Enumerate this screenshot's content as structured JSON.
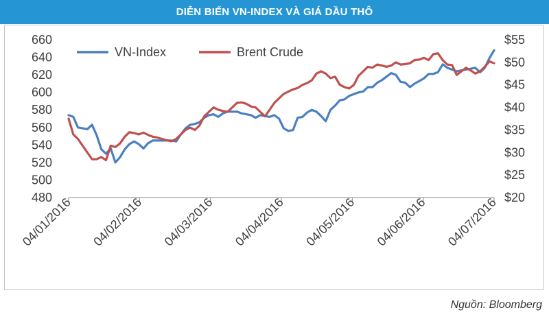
{
  "header": {
    "title": "DIỄN BIẾN VN-INDEX VÀ GIÁ DẦU THÔ"
  },
  "source": "Nguồn: Bloomberg",
  "colors": {
    "header_bg": "#2596d3",
    "vn_index": "#4a7fc1",
    "brent": "#c0504d"
  },
  "chart_data": {
    "type": "line",
    "title": "DIỄN BIẾN VN-INDEX VÀ GIÁ DẦU THÔ",
    "x_labels": [
      "04/01/2016",
      "04/02/2016",
      "04/03/2016",
      "04/04/2016",
      "04/05/2016",
      "04/06/2016",
      "04/07/2016"
    ],
    "y_left": {
      "range": [
        480,
        660
      ],
      "ticks": [
        "480",
        "500",
        "520",
        "540",
        "560",
        "580",
        "600",
        "620",
        "640",
        "660"
      ]
    },
    "y_right": {
      "range": [
        20,
        55
      ],
      "ticks": [
        "$20",
        "$25",
        "$30",
        "$35",
        "$40",
        "$45",
        "$50",
        "$55"
      ]
    },
    "legend": [
      "VN-Index",
      "Brent Crude"
    ],
    "series": [
      {
        "name": "VN-Index",
        "axis": "left",
        "x": [
          0,
          2,
          4,
          6,
          8,
          10,
          12,
          14,
          16,
          18,
          20,
          22,
          24,
          26,
          28,
          30,
          32,
          34,
          36,
          38,
          40,
          42,
          44,
          46,
          48,
          50,
          52,
          54,
          56,
          58,
          60,
          62,
          64,
          66,
          68,
          70,
          72,
          74,
          76,
          78,
          80,
          82,
          84,
          86,
          88,
          90,
          92,
          94,
          96,
          98,
          100,
          102,
          104,
          106,
          108,
          110,
          112,
          114,
          116,
          118,
          120,
          122,
          124,
          126,
          128,
          130,
          132,
          134,
          136,
          138,
          140,
          142,
          144,
          146,
          148,
          150,
          152,
          154,
          156,
          158,
          160,
          162,
          164,
          166,
          168,
          170,
          172,
          174,
          176,
          178,
          180,
          182
        ],
        "values": [
          574,
          572,
          560,
          559,
          558,
          563,
          551,
          535,
          530,
          536,
          520,
          526,
          535,
          541,
          544,
          541,
          536,
          542,
          545,
          545,
          545,
          545,
          545,
          544,
          552,
          559,
          563,
          564,
          566,
          571,
          574,
          575,
          572,
          576,
          578,
          578,
          578,
          576,
          575,
          574,
          571,
          574,
          573,
          572,
          574,
          570,
          559,
          556,
          557,
          571,
          572,
          577,
          580,
          578,
          573,
          567,
          580,
          585,
          591,
          592,
          596,
          598,
          600,
          601,
          606,
          606,
          611,
          614,
          618,
          622,
          620,
          612,
          611,
          606,
          610,
          613,
          616,
          621,
          621,
          623,
          632,
          628,
          626,
          624,
          625,
          626,
          627,
          628,
          623,
          628,
          639,
          648
        ]
      },
      {
        "name": "Brent Crude",
        "axis": "right",
        "x": [
          0,
          2,
          4,
          6,
          8,
          10,
          12,
          14,
          16,
          18,
          20,
          22,
          24,
          26,
          28,
          30,
          32,
          34,
          36,
          38,
          40,
          42,
          44,
          46,
          48,
          50,
          52,
          54,
          56,
          58,
          60,
          62,
          64,
          66,
          68,
          70,
          72,
          74,
          76,
          78,
          80,
          82,
          84,
          86,
          88,
          90,
          92,
          94,
          96,
          98,
          100,
          102,
          104,
          106,
          108,
          110,
          112,
          114,
          116,
          118,
          120,
          122,
          124,
          126,
          128,
          130,
          132,
          134,
          136,
          138,
          140,
          142,
          144,
          146,
          148,
          150,
          152,
          154,
          156,
          158,
          160,
          162,
          164,
          166,
          168,
          170,
          172,
          174,
          176,
          178,
          180,
          182
        ],
        "values": [
          37.5,
          34,
          33,
          31.5,
          30,
          28.5,
          28.5,
          29,
          28.3,
          31.5,
          31.2,
          32,
          33.5,
          34.5,
          34.3,
          34,
          34.4,
          33.9,
          33.5,
          33.3,
          33,
          32.7,
          32.5,
          33,
          34,
          35,
          35.5,
          35,
          36,
          38,
          39,
          40,
          39.5,
          39.2,
          39,
          40,
          41,
          41.1,
          40.8,
          40.2,
          40,
          39,
          38,
          39.5,
          41,
          42,
          43,
          43.5,
          44,
          44.3,
          45,
          45.4,
          46,
          47.5,
          48,
          47.5,
          46.5,
          46.8,
          45,
          44.5,
          44.2,
          45,
          47,
          48,
          49,
          48.8,
          49.5,
          49.3,
          49,
          49.3,
          50,
          49.5,
          49.6,
          49.8,
          50.5,
          50.6,
          51,
          50.5,
          51.8,
          52,
          50.5,
          49.5,
          49.4,
          47.2,
          48,
          48.8,
          48.2,
          47.5,
          48,
          49,
          50.2,
          49.8
        ]
      }
    ]
  }
}
